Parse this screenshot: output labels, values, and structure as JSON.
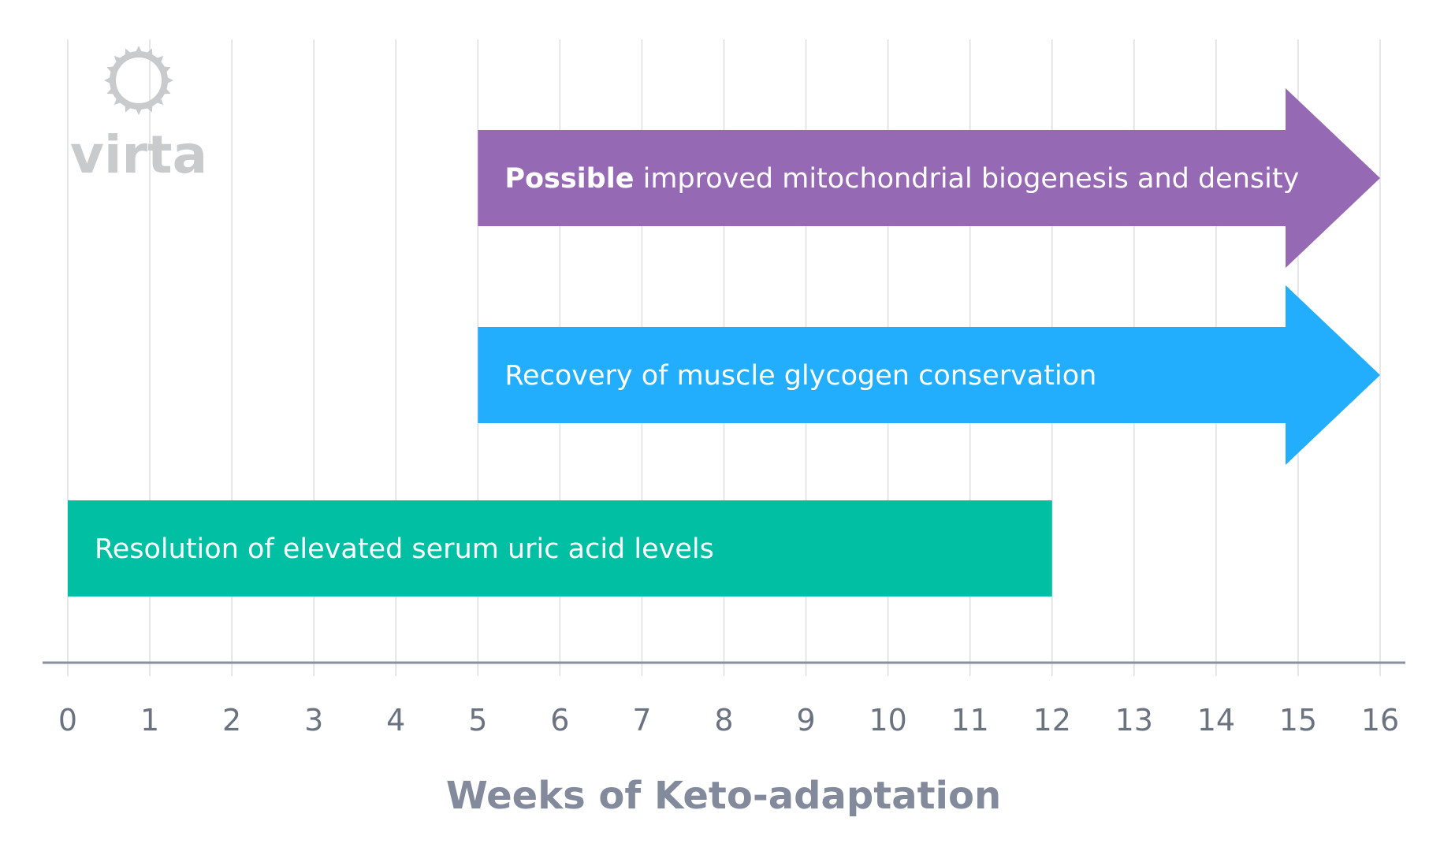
{
  "logo": {
    "text": "virta",
    "icon": "sun-gear-icon",
    "color": "#c9cacc"
  },
  "chart_data": {
    "type": "bar",
    "orientation": "horizontal-timeline",
    "title": "",
    "xlabel": "Weeks of Keto-adaptation",
    "ylabel": "",
    "xlim": [
      0,
      16
    ],
    "x_ticks": [
      0,
      1,
      2,
      3,
      4,
      5,
      6,
      7,
      8,
      9,
      10,
      11,
      12,
      13,
      14,
      15,
      16
    ],
    "grid": "vertical",
    "bars": [
      {
        "label_bold": "Possible",
        "label": " improved mitochondrial biogenesis and density",
        "start": 5,
        "end": 16,
        "continues": true,
        "color": "#9569b4"
      },
      {
        "label_bold": "",
        "label": "Recovery of muscle glycogen conservation",
        "start": 5,
        "end": 16,
        "continues": true,
        "color": "#22aefc"
      },
      {
        "label_bold": "",
        "label": "Resolution of elevated serum uric acid levels",
        "start": 0,
        "end": 12,
        "continues": false,
        "color": "#00bfa2"
      }
    ]
  }
}
